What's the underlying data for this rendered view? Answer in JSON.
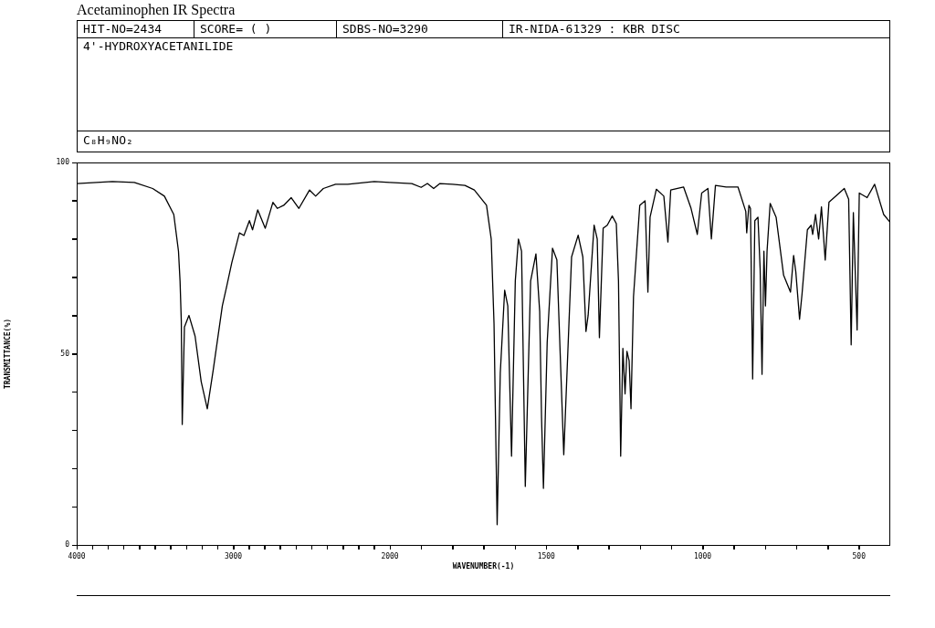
{
  "chart_data": [
    {
      "type": "line",
      "title": "Acetaminophen IR Spectra",
      "ylabel": "TRANSMITTANCE(%)",
      "annotations": [
        "HIT-NO=2434",
        "SCORE=  (    )",
        "SDBS-NO=3290",
        "IR-NIDA-61329 : KBR DISC",
        "4'-HYDROXYACETANILIDE",
        "C₈H₉NO₂"
      ],
      "xlim": [
        4000,
        2000
      ],
      "ylim": [
        0,
        100
      ],
      "xticks": [
        4000,
        {
          "value": 3900,
          "label": null
        },
        {
          "value": 3800,
          "label": null
        },
        {
          "value": 3700,
          "label": null
        },
        {
          "value": 3600,
          "label": null
        },
        {
          "value": 3500,
          "label": null
        },
        {
          "value": 3400,
          "label": null
        },
        {
          "value": 3300,
          "label": null
        },
        {
          "value": 3200,
          "label": null
        },
        {
          "value": 3100,
          "label": null
        },
        3000,
        {
          "value": 2900,
          "label": null
        },
        {
          "value": 2800,
          "label": null
        },
        {
          "value": 2700,
          "label": null
        },
        {
          "value": 2600,
          "label": null
        },
        {
          "value": 2500,
          "label": null
        },
        {
          "value": 2400,
          "label": null
        },
        {
          "value": 2300,
          "label": null
        },
        {
          "value": 2200,
          "label": null
        },
        {
          "value": 2100,
          "label": null
        }
      ],
      "yticks": [
        0,
        {
          "value": 10,
          "label": null
        },
        {
          "value": 20,
          "label": null
        },
        {
          "value": 30,
          "label": null
        },
        {
          "value": 40,
          "label": null
        },
        50,
        {
          "value": 60,
          "label": null
        },
        {
          "value": 70,
          "label": null
        },
        {
          "value": 80,
          "label": null
        },
        {
          "value": 90,
          "label": null
        },
        100
      ],
      "series": [
        {
          "color": "#000000",
          "x": [
            4000,
            3772,
            3632,
            3515,
            3440,
            3380,
            3350,
            3340,
            3332,
            3326,
            3312,
            3283,
            3244,
            3205,
            3166,
            3128,
            3070,
            3041,
            3010,
            2961,
            2932,
            2897,
            2877,
            2844,
            2796,
            2747,
            2718,
            2678,
            2630,
            2581,
            2513,
            2474,
            2425,
            2347,
            2269,
            2100,
            2000
          ],
          "values": [
            94.5,
            95,
            94.8,
            93.2,
            91.2,
            86.4,
            76.8,
            69,
            58.5,
            31.5,
            57,
            60,
            54.6,
            42.7,
            35.6,
            45.8,
            62.5,
            67.8,
            73.7,
            81.6,
            80.9,
            84.8,
            82.4,
            87.6,
            82.8,
            89.6,
            88,
            88.8,
            90.8,
            88,
            92.8,
            91.2,
            93.2,
            94.3,
            94.3,
            95,
            94.8
          ]
        }
      ]
    },
    {
      "type": "line",
      "xlabel": "WAVENUMBER(-1)",
      "tick_labels": "x",
      "xlim": [
        2000,
        400
      ],
      "ylim": [
        0,
        100
      ],
      "xticks": [
        2000,
        {
          "value": 1900,
          "label": null
        },
        {
          "value": 1800,
          "label": null
        },
        {
          "value": 1700,
          "label": null
        },
        {
          "value": 1600,
          "label": null
        },
        1500,
        {
          "value": 1400,
          "label": null
        },
        {
          "value": 1300,
          "label": null
        },
        {
          "value": 1200,
          "label": null
        },
        {
          "value": 1100,
          "label": null
        },
        1000,
        {
          "value": 900,
          "label": null
        },
        {
          "value": 800,
          "label": null
        },
        {
          "value": 700,
          "label": null
        },
        {
          "value": 600,
          "label": null
        },
        500
      ],
      "series": [
        {
          "color": "#000000",
          "x": [
            2000,
            1930,
            1900,
            1880,
            1860,
            1840,
            1800,
            1760,
            1730,
            1691,
            1676,
            1667,
            1657,
            1647,
            1633,
            1623,
            1611,
            1599,
            1589,
            1579,
            1567,
            1550,
            1533,
            1521,
            1515,
            1509,
            1497,
            1480,
            1466,
            1444,
            1419,
            1398,
            1383,
            1373,
            1366,
            1347,
            1337,
            1330,
            1318,
            1305,
            1289,
            1276,
            1269,
            1262,
            1255,
            1248,
            1242,
            1235,
            1229,
            1221,
            1201,
            1184,
            1175,
            1168,
            1148,
            1124,
            1111,
            1102,
            1061,
            1037,
            1017,
            1003,
            983,
            972,
            959,
            925,
            887,
            862,
            859,
            852,
            847,
            840,
            833,
            823,
            816,
            810,
            804,
            799,
            794,
            784,
            765,
            741,
            719,
            709,
            702,
            690,
            682,
            665,
            653,
            648,
            639,
            629,
            620,
            608,
            596,
            547,
            533,
            525,
            518,
            506,
            499,
            474,
            450,
            421,
            402
          ],
          "values": [
            94.8,
            94.5,
            93.5,
            94.5,
            93.2,
            94.5,
            94.3,
            94,
            92.8,
            88.8,
            80,
            57.8,
            5.3,
            45,
            66.6,
            62.5,
            23.2,
            69,
            80,
            76.8,
            15.3,
            69,
            76.1,
            61,
            33.2,
            14.8,
            53,
            77.6,
            74.5,
            23.6,
            75.3,
            81,
            75.3,
            55.8,
            60.1,
            83.6,
            80,
            54.2,
            82.8,
            83.6,
            86,
            84,
            69,
            23.2,
            51.4,
            39.5,
            50.6,
            48.2,
            35.6,
            64.9,
            88.8,
            90,
            66.1,
            85.7,
            93,
            91.2,
            79.2,
            92.8,
            93.6,
            88,
            81.2,
            92,
            93.2,
            80,
            94,
            93.6,
            93.6,
            87.2,
            81.6,
            88.8,
            88,
            43.4,
            84.8,
            85.7,
            72.1,
            44.6,
            76.8,
            62.5,
            76.8,
            89.3,
            85.7,
            70.5,
            66.1,
            75.7,
            71.4,
            59,
            65.7,
            82.4,
            83.6,
            81.2,
            86.4,
            80,
            88.4,
            74.5,
            89.6,
            93.2,
            90.4,
            52.3,
            86.9,
            56.2,
            92,
            90.8,
            94.3,
            86.4,
            84.5
          ]
        }
      ]
    }
  ]
}
